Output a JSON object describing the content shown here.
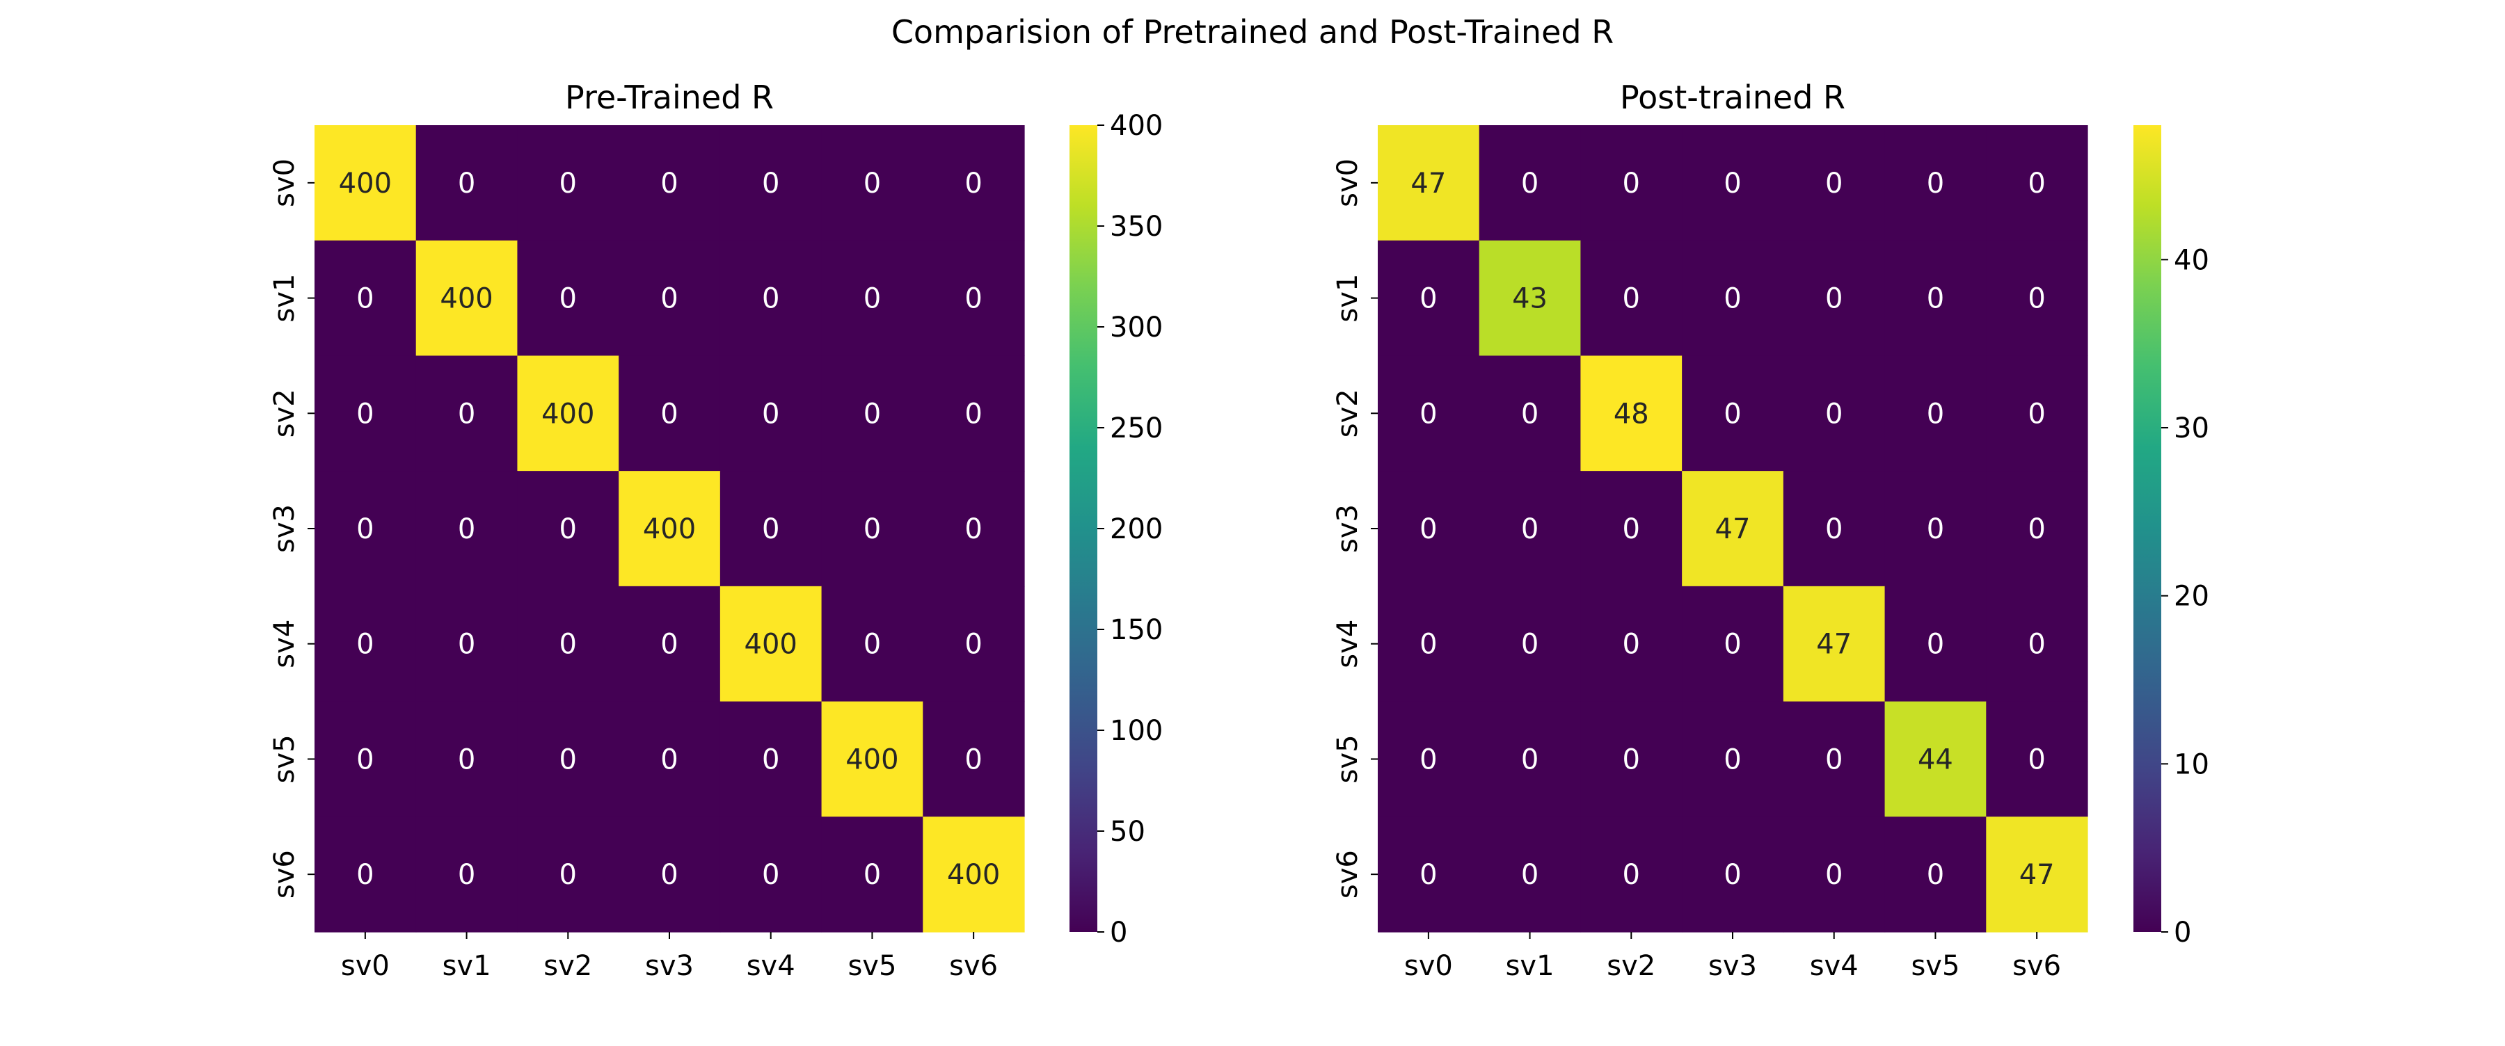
{
  "figure": {
    "suptitle": "Comparision of Pretrained and Post-Trained R"
  },
  "chart_data": [
    {
      "type": "heatmap",
      "title": "Pre-Trained R",
      "row_labels": [
        "sv0",
        "sv1",
        "sv2",
        "sv3",
        "sv4",
        "sv5",
        "sv6"
      ],
      "col_labels": [
        "sv0",
        "sv1",
        "sv2",
        "sv3",
        "sv4",
        "sv5",
        "sv6"
      ],
      "values": [
        [
          400,
          0,
          0,
          0,
          0,
          0,
          0
        ],
        [
          0,
          400,
          0,
          0,
          0,
          0,
          0
        ],
        [
          0,
          0,
          400,
          0,
          0,
          0,
          0
        ],
        [
          0,
          0,
          0,
          400,
          0,
          0,
          0
        ],
        [
          0,
          0,
          0,
          0,
          400,
          0,
          0
        ],
        [
          0,
          0,
          0,
          0,
          0,
          400,
          0
        ],
        [
          0,
          0,
          0,
          0,
          0,
          0,
          400
        ]
      ],
      "colormap": "viridis",
      "vmin": 0,
      "vmax": 400,
      "colorbar_ticks": [
        0,
        50,
        100,
        150,
        200,
        250,
        300,
        350,
        400
      ]
    },
    {
      "type": "heatmap",
      "title": "Post-trained R",
      "row_labels": [
        "sv0",
        "sv1",
        "sv2",
        "sv3",
        "sv4",
        "sv5",
        "sv6"
      ],
      "col_labels": [
        "sv0",
        "sv1",
        "sv2",
        "sv3",
        "sv4",
        "sv5",
        "sv6"
      ],
      "values": [
        [
          47,
          0,
          0,
          0,
          0,
          0,
          0
        ],
        [
          0,
          43,
          0,
          0,
          0,
          0,
          0
        ],
        [
          0,
          0,
          48,
          0,
          0,
          0,
          0
        ],
        [
          0,
          0,
          0,
          47,
          0,
          0,
          0
        ],
        [
          0,
          0,
          0,
          0,
          47,
          0,
          0
        ],
        [
          0,
          0,
          0,
          0,
          0,
          44,
          0
        ],
        [
          0,
          0,
          0,
          0,
          0,
          0,
          47
        ]
      ],
      "colormap": "viridis",
      "vmin": 0,
      "vmax": 48,
      "colorbar_ticks": [
        0,
        10,
        20,
        30,
        40
      ]
    }
  ]
}
